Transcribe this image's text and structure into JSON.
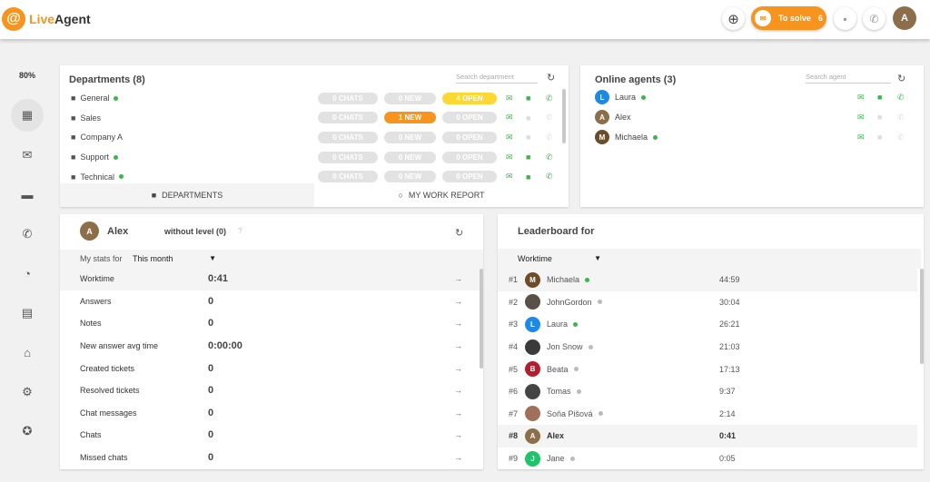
{
  "header": {
    "logo": "LiveAgent",
    "to_solve_label": "To solve",
    "to_solve_count": "6",
    "user_initial": "A",
    "accent": "#f7941d"
  },
  "sidebar": {
    "zoom": "80%",
    "items": [
      {
        "icon": "dashboard-icon",
        "glyph": "▦"
      },
      {
        "icon": "mail-icon",
        "glyph": "✉"
      },
      {
        "icon": "chat-icon",
        "glyph": "▬"
      },
      {
        "icon": "phone-icon",
        "glyph": "✆"
      },
      {
        "icon": "reports-icon",
        "glyph": "◔"
      },
      {
        "icon": "contacts-icon",
        "glyph": "▤"
      },
      {
        "icon": "bank-icon",
        "glyph": "⌂"
      },
      {
        "icon": "settings-icon",
        "glyph": "⚙"
      },
      {
        "icon": "star-icon",
        "glyph": "✪"
      }
    ]
  },
  "departments": {
    "title": "Departments (8)",
    "search_placeholder": "Search department",
    "rows": [
      {
        "name": "General",
        "online": true,
        "chats": "0 CHATS",
        "new": "0 NEW",
        "open": "4 OPEN",
        "new_active": false,
        "open_active": true,
        "chat": true,
        "phone": true
      },
      {
        "name": "Sales",
        "online": false,
        "chats": "0 CHATS",
        "new": "1 NEW",
        "open": "0 OPEN",
        "new_active": true,
        "open_active": false,
        "chat": false,
        "phone": false
      },
      {
        "name": "Company A",
        "online": false,
        "chats": "0 CHATS",
        "new": "0 NEW",
        "open": "0 OPEN",
        "new_active": false,
        "open_active": false,
        "chat": false,
        "phone": false
      },
      {
        "name": "Support",
        "online": true,
        "chats": "0 CHATS",
        "new": "0 NEW",
        "open": "0 OPEN",
        "new_active": false,
        "open_active": false,
        "chat": true,
        "phone": true
      },
      {
        "name": "Technical",
        "online": true,
        "chats": "0 CHATS",
        "new": "0 NEW",
        "open": "0 OPEN",
        "new_active": false,
        "open_active": false,
        "chat": true,
        "phone": true
      }
    ],
    "tabs": [
      "DEPARTMENTS",
      "MY WORK REPORT"
    ]
  },
  "online_agents": {
    "title": "Online agents (3)",
    "search_placeholder": "Search agent",
    "agents": [
      {
        "initial": "L",
        "name": "Laura",
        "color": "#1e88e5",
        "online": true,
        "chat": true,
        "phone": true
      },
      {
        "initial": "A",
        "name": "Alex",
        "color": "#8d6e4a",
        "online": false,
        "chat": false,
        "phone": false
      },
      {
        "initial": "M",
        "name": "Michaela",
        "color": "#6d4c2a",
        "online": true,
        "chat": false,
        "phone": false
      }
    ]
  },
  "stats": {
    "user_initial": "A",
    "user": "Alex",
    "level": "without level (0)",
    "help": "?",
    "period_label": "My stats for",
    "period": "This month",
    "rows": [
      {
        "label": "Worktime",
        "value": "0:41"
      },
      {
        "label": "Answers",
        "value": "0"
      },
      {
        "label": "Notes",
        "value": "0"
      },
      {
        "label": "New answer avg time",
        "value": "0:00:00"
      },
      {
        "label": "Created tickets",
        "value": "0"
      },
      {
        "label": "Resolved tickets",
        "value": "0"
      },
      {
        "label": "Chat messages",
        "value": "0"
      },
      {
        "label": "Chats",
        "value": "0"
      },
      {
        "label": "Missed chats",
        "value": "0"
      }
    ]
  },
  "leaderboard": {
    "title": "Leaderboard for",
    "metric": "Worktime",
    "rows": [
      {
        "rank": "#1",
        "initial": "M",
        "name": "Michaela",
        "time": "44:59",
        "online": true,
        "color": "#6d4c2a"
      },
      {
        "rank": "#2",
        "initial": "",
        "name": "JohnGordon",
        "time": "30:04",
        "online": false,
        "color": "#5a5048"
      },
      {
        "rank": "#3",
        "initial": "L",
        "name": "Laura",
        "time": "26:21",
        "online": true,
        "color": "#1e88e5"
      },
      {
        "rank": "#4",
        "initial": "",
        "name": "Jon Snow",
        "time": "21:03",
        "online": false,
        "color": "#3a3a3a"
      },
      {
        "rank": "#5",
        "initial": "B",
        "name": "Beata",
        "time": "17:13",
        "online": false,
        "color": "#b71c2c"
      },
      {
        "rank": "#6",
        "initial": "",
        "name": "Tomas",
        "time": "9:37",
        "online": false,
        "color": "#444"
      },
      {
        "rank": "#7",
        "initial": "",
        "name": "Soňa Pišová",
        "time": "2:14",
        "online": false,
        "color": "#a0705a"
      },
      {
        "rank": "#8",
        "initial": "A",
        "name": "Alex",
        "time": "0:41",
        "online": false,
        "color": "#8d6e4a",
        "self": true
      },
      {
        "rank": "#9",
        "initial": "J",
        "name": "Jane",
        "time": "0:05",
        "online": false,
        "color": "#1ec467"
      }
    ]
  }
}
